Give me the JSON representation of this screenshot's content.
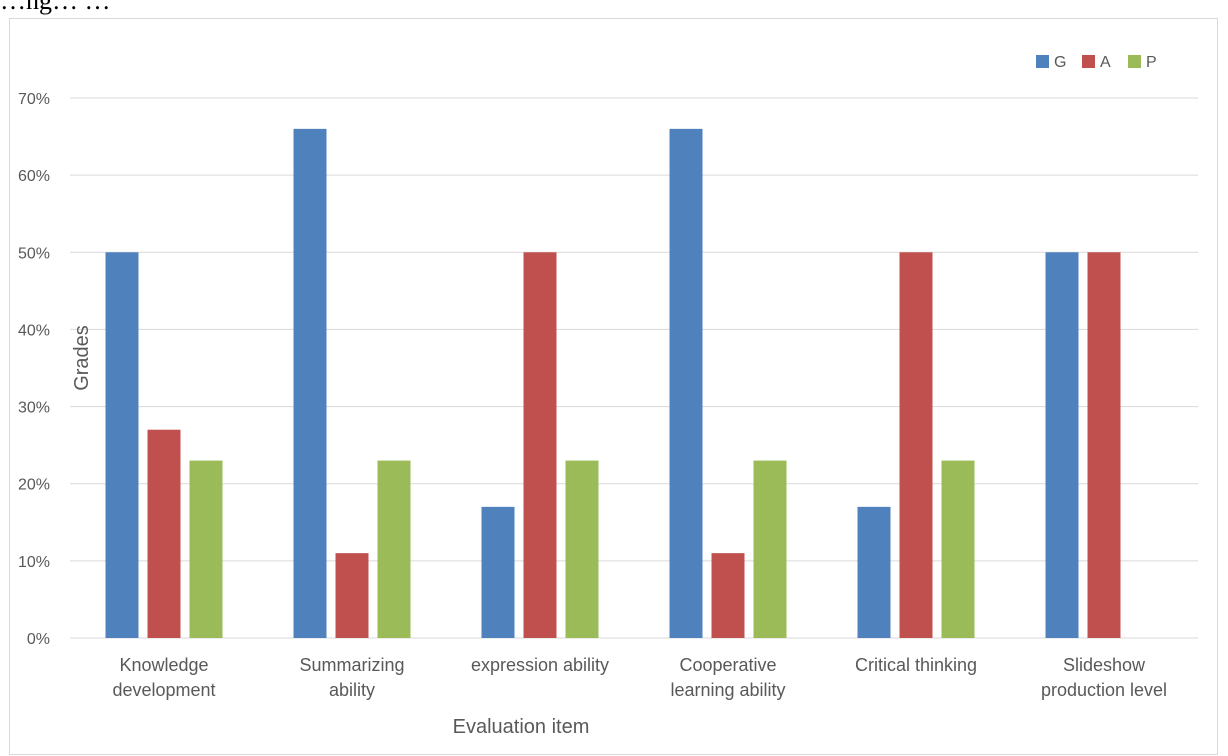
{
  "caption": "…ng… …",
  "chart_data": {
    "type": "bar",
    "categories": [
      "Knowledge\ndevelopment",
      "Summarizing\nability",
      "expression ability",
      "Cooperative\nlearning ability",
      "Critical thinking",
      "Slideshow\nproduction level"
    ],
    "series": [
      {
        "name": "G",
        "color": "#4f81bd",
        "values": [
          0.5,
          0.66,
          0.17,
          0.66,
          0.17,
          0.5
        ]
      },
      {
        "name": "A",
        "color": "#c0504d",
        "values": [
          0.27,
          0.11,
          0.5,
          0.11,
          0.5,
          0.5
        ]
      },
      {
        "name": "P",
        "color": "#9bbb59",
        "values": [
          0.23,
          0.23,
          0.23,
          0.23,
          0.23,
          0
        ]
      }
    ],
    "yticks": [
      "0%",
      "10%",
      "20%",
      "30%",
      "40%",
      "50%",
      "60%",
      "70%"
    ],
    "ylim": [
      0,
      0.7
    ],
    "xlabel": "Evaluation item",
    "ylabel": "Grades",
    "grid": true,
    "legend_position": "top-right",
    "gridline_color": "#d9d9d9"
  }
}
